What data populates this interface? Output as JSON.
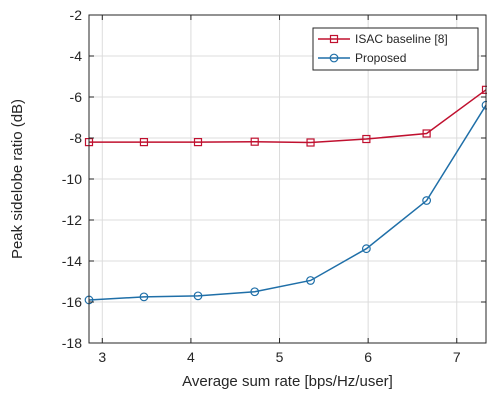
{
  "chart_data": {
    "type": "line",
    "title": "",
    "xlabel": "Average sum rate [bps/Hz/user]",
    "ylabel": "Peak sidelobe ratio (dB)",
    "xlim": [
      2.85,
      7.33
    ],
    "ylim": [
      -18,
      -2
    ],
    "xticks": [
      3,
      4,
      5,
      6,
      7
    ],
    "yticks": [
      -18,
      -16,
      -14,
      -12,
      -10,
      -8,
      -6,
      -4,
      -2
    ],
    "grid": true,
    "legend_position": "top-right",
    "series": [
      {
        "name": "ISAC baseline [8]",
        "color": "#c0102f",
        "marker": "square",
        "x": [
          2.85,
          3.47,
          4.08,
          4.72,
          5.35,
          5.98,
          6.66,
          7.33
        ],
        "y": [
          -8.2,
          -8.2,
          -8.2,
          -8.18,
          -8.22,
          -8.05,
          -7.78,
          -5.65
        ]
      },
      {
        "name": "Proposed",
        "color": "#1f6fa8",
        "marker": "circle",
        "x": [
          2.85,
          3.47,
          4.08,
          4.72,
          5.35,
          5.98,
          6.66,
          7.33
        ],
        "y": [
          -15.9,
          -15.75,
          -15.7,
          -15.5,
          -14.95,
          -13.4,
          -11.05,
          -6.4
        ]
      }
    ]
  }
}
